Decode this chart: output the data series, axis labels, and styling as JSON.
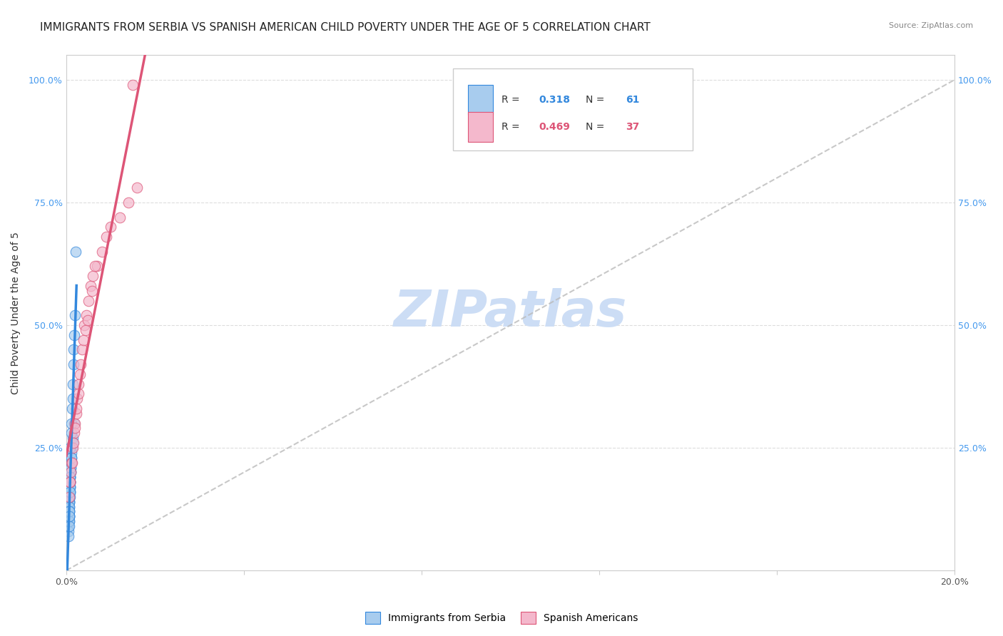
{
  "title": "IMMIGRANTS FROM SERBIA VS SPANISH AMERICAN CHILD POVERTY UNDER THE AGE OF 5 CORRELATION CHART",
  "source": "Source: ZipAtlas.com",
  "ylabel": "Child Poverty Under the Age of 5",
  "watermark": "ZIPatlas",
  "legend_label_1": "Immigrants from Serbia",
  "legend_label_2": "Spanish Americans",
  "r1": 0.318,
  "n1": 61,
  "r2": 0.469,
  "n2": 37,
  "blue_color": "#a8ccee",
  "pink_color": "#f4b8cc",
  "blue_line_color": "#3388dd",
  "pink_line_color": "#dd5577",
  "blue_scatter_x": [
    0.0008,
    0.0012,
    0.0006,
    0.0015,
    0.001,
    0.0008,
    0.0005,
    0.0018,
    0.0007,
    0.0009,
    0.0011,
    0.0006,
    0.0014,
    0.0009,
    0.0007,
    0.0013,
    0.0008,
    0.0006,
    0.001,
    0.0005,
    0.0009,
    0.0007,
    0.0006,
    0.0008,
    0.0012,
    0.0005,
    0.001,
    0.0007,
    0.0009,
    0.0006,
    0.0008,
    0.0012,
    0.0007,
    0.0009,
    0.0006,
    0.0011,
    0.0008,
    0.0007,
    0.0005,
    0.0009,
    0.001,
    0.0006,
    0.0008,
    0.0007,
    0.0009,
    0.0005,
    0.0011,
    0.0006,
    0.0008,
    0.0007,
    0.0014,
    0.0016,
    0.0018,
    0.002,
    0.0015,
    0.0012,
    0.0013,
    0.0017,
    0.0011,
    0.0009,
    0.0021
  ],
  "blue_scatter_y": [
    0.18,
    0.22,
    0.15,
    0.27,
    0.2,
    0.17,
    0.13,
    0.3,
    0.14,
    0.19,
    0.22,
    0.12,
    0.26,
    0.18,
    0.14,
    0.25,
    0.16,
    0.11,
    0.21,
    0.1,
    0.19,
    0.13,
    0.11,
    0.17,
    0.23,
    0.09,
    0.2,
    0.14,
    0.18,
    0.1,
    0.16,
    0.24,
    0.13,
    0.19,
    0.11,
    0.22,
    0.15,
    0.12,
    0.08,
    0.18,
    0.21,
    0.1,
    0.17,
    0.12,
    0.19,
    0.07,
    0.23,
    0.09,
    0.16,
    0.11,
    0.35,
    0.42,
    0.48,
    0.52,
    0.38,
    0.3,
    0.33,
    0.45,
    0.28,
    0.25,
    0.65
  ],
  "pink_scatter_x": [
    0.001,
    0.0015,
    0.0008,
    0.002,
    0.0012,
    0.0025,
    0.0018,
    0.003,
    0.0022,
    0.0035,
    0.0028,
    0.004,
    0.0045,
    0.005,
    0.0055,
    0.006,
    0.007,
    0.008,
    0.009,
    0.01,
    0.012,
    0.014,
    0.016,
    0.0007,
    0.0009,
    0.0013,
    0.0016,
    0.0019,
    0.0023,
    0.0027,
    0.0032,
    0.0038,
    0.0043,
    0.0048,
    0.0058,
    0.0065,
    0.015
  ],
  "pink_scatter_y": [
    0.2,
    0.25,
    0.18,
    0.3,
    0.22,
    0.35,
    0.28,
    0.4,
    0.32,
    0.45,
    0.38,
    0.5,
    0.52,
    0.55,
    0.58,
    0.6,
    0.62,
    0.65,
    0.68,
    0.7,
    0.72,
    0.75,
    0.78,
    0.15,
    0.18,
    0.22,
    0.26,
    0.29,
    0.33,
    0.36,
    0.42,
    0.47,
    0.49,
    0.51,
    0.57,
    0.62,
    0.99
  ],
  "xlim": [
    0.0,
    0.2
  ],
  "ylim": [
    0.0,
    1.05
  ],
  "xticks": [
    0.0,
    0.04,
    0.08,
    0.12,
    0.16,
    0.2
  ],
  "yticks": [
    0.0,
    0.25,
    0.5,
    0.75,
    1.0
  ],
  "grid_color": "#dddddd",
  "background_color": "#ffffff",
  "title_fontsize": 11,
  "axis_label_fontsize": 10,
  "tick_fontsize": 9,
  "source_fontsize": 8,
  "watermark_color": "#ccddf5",
  "watermark_fontsize": 52,
  "blue_tick_color": "#4499ee",
  "right_tick_color": "#4499ee"
}
